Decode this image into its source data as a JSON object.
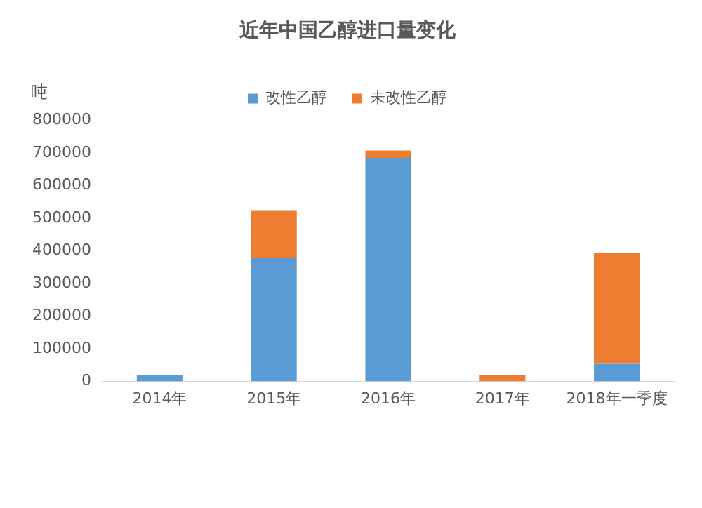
{
  "chart_data": {
    "type": "bar",
    "title": "近年中国乙醇进口量变化",
    "ylabel": "吨",
    "categories": [
      "2014年",
      "2015年",
      "2016年",
      "2017年",
      "2018年一季度"
    ],
    "series": [
      {
        "name": "改性乙醇",
        "color": "#5b9bd5",
        "values": [
          20000,
          378000,
          685000,
          0,
          54000
        ]
      },
      {
        "name": "未改性乙醇",
        "color": "#ed7d31",
        "values": [
          0,
          145000,
          23000,
          20000,
          339000
        ]
      }
    ],
    "stacked": true,
    "ylim": [
      0,
      800000
    ],
    "yticks": [
      0,
      100000,
      200000,
      300000,
      400000,
      500000,
      600000,
      700000,
      800000
    ],
    "grid": false,
    "legend": "top"
  }
}
